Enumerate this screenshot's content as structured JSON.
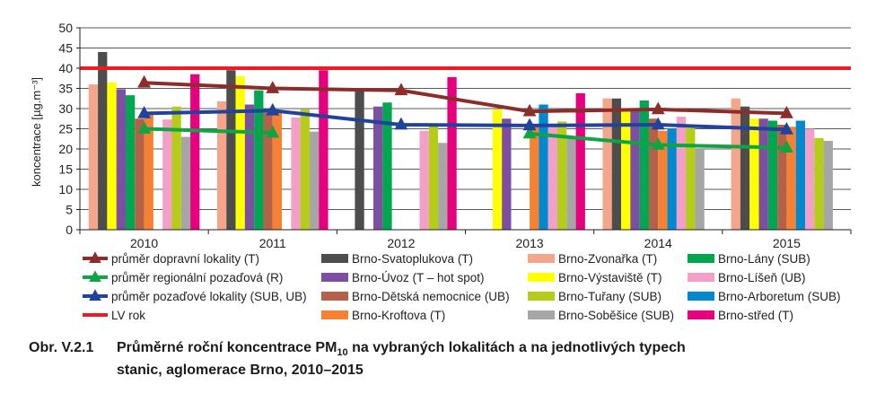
{
  "chart_data": {
    "type": "bar",
    "ylabel": "koncentrace [µg.m⁻³]",
    "ylim": [
      0,
      50
    ],
    "yticks": [
      0,
      5,
      10,
      15,
      20,
      25,
      30,
      35,
      40,
      45,
      50
    ],
    "grid": true,
    "legend_position": "bottom",
    "categories": [
      "2010",
      "2011",
      "2012",
      "2013",
      "2014",
      "2015"
    ],
    "series": [
      {
        "name": "Brno-Zvonařka (T)",
        "color": "#f4a58a",
        "values": [
          36,
          31.8,
          null,
          null,
          32.5,
          32.5
        ]
      },
      {
        "name": "Brno-Svatoplukova (T)",
        "color": "#4d4d4d",
        "values": [
          44,
          39.5,
          34.5,
          null,
          32.5,
          30.5
        ]
      },
      {
        "name": "Brno-Výstaviště (T)",
        "color": "#ffff00",
        "values": [
          36.5,
          38,
          null,
          29.8,
          29.5,
          27.5
        ]
      },
      {
        "name": "Brno-Úvoz (T – hot spot)",
        "color": "#7c4fa2",
        "values": [
          34.8,
          31,
          30.5,
          27.5,
          29.5,
          27.5
        ]
      },
      {
        "name": "Brno-Lány (SUB)",
        "color": "#00a650",
        "values": [
          33.3,
          34.5,
          31.5,
          null,
          32,
          27
        ]
      },
      {
        "name": "Brno-Dětská nemocnice (UB)",
        "color": "#b5614a",
        "values": [
          27.5,
          29,
          null,
          null,
          27.5,
          26
        ]
      },
      {
        "name": "Brno-Kroftova (T)",
        "color": "#f58232",
        "values": [
          28.5,
          29.5,
          null,
          25.8,
          24.5,
          25.5
        ]
      },
      {
        "name": "Brno-Arboretum (SUB)",
        "color": "#0089cf",
        "values": [
          null,
          null,
          null,
          31,
          25,
          27
        ]
      },
      {
        "name": "Brno-Líšeň (UB)",
        "color": "#f2a0c8",
        "values": [
          27.3,
          27.8,
          24.5,
          25.5,
          28,
          25
        ]
      },
      {
        "name": "Brno-Tuřany (SUB)",
        "color": "#b5cc18",
        "values": [
          30.5,
          29.8,
          26,
          26.8,
          25.2,
          22.7
        ]
      },
      {
        "name": "Brno-Soběšice (SUB)",
        "color": "#a6a6a6",
        "values": [
          23,
          24.3,
          21.5,
          23.2,
          20,
          22
        ]
      },
      {
        "name": "Brno-střed (T)",
        "color": "#e6007e",
        "values": [
          38.5,
          39.5,
          37.8,
          33.8,
          null,
          null
        ]
      }
    ],
    "lines": [
      {
        "name": "průměr dopravní lokality (T)",
        "color": "#8b2e2a",
        "values": [
          36.4,
          35,
          34.5,
          29.3,
          29.8,
          28.8
        ]
      },
      {
        "name": "průměr regionální pozaďová (R)",
        "color": "#10a544",
        "values": [
          25,
          24,
          null,
          23.8,
          21,
          20.3
        ]
      },
      {
        "name": "průměr pozaďové lokality (SUB, UB)",
        "color": "#22439b",
        "values": [
          28.8,
          29.5,
          26,
          25.8,
          26,
          24.8
        ]
      }
    ],
    "reference_line": {
      "name": "LV rok",
      "value": 40,
      "color": "#ed1c24"
    }
  },
  "caption": {
    "label": "Obr. V.2.1",
    "text_before_pm": "Průměrné roční koncentrace PM",
    "pm_subscript": "10",
    "text_after_pm": " na vybraných lokalitách a na jednotlivých typech",
    "line2": "stanic, aglomerace Brno, 2010–2015"
  }
}
